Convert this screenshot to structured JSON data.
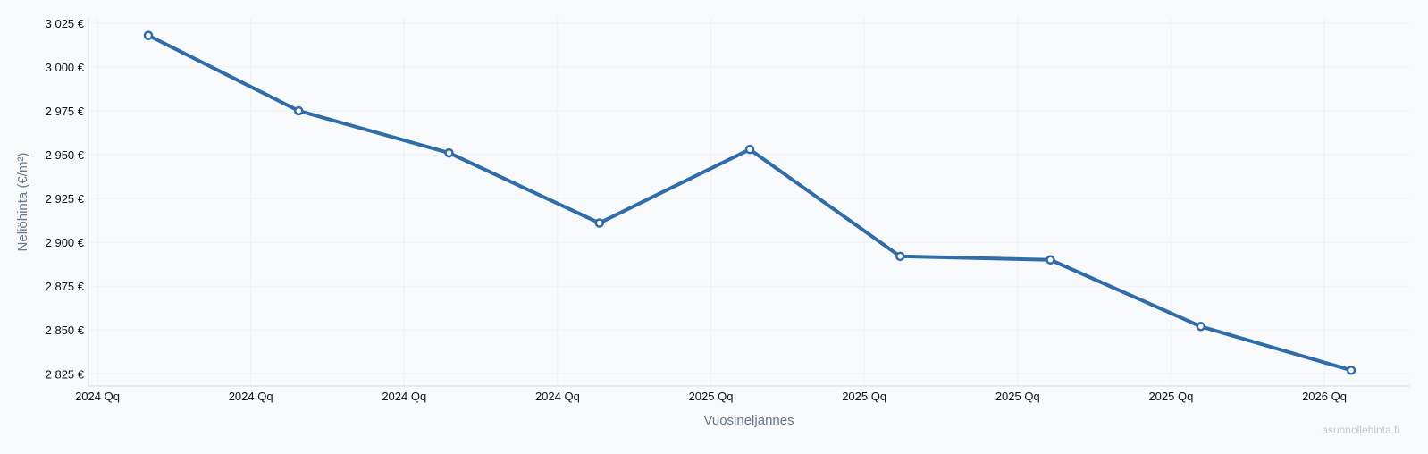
{
  "chart_data": {
    "type": "line",
    "title": "",
    "xlabel": "Vuosineljännes",
    "ylabel": "Neliöhinta (€/m²)",
    "x_tick_labels": [
      "2024 Qq",
      "2024 Qq",
      "2024 Qq",
      "2024 Qq",
      "2025 Qq",
      "2025 Qq",
      "2025 Qq",
      "2025 Qq",
      "2026 Qq"
    ],
    "y_tick_labels": [
      "3 025 €",
      "3 000 €",
      "2 975 €",
      "2 950 €",
      "2 925 €",
      "2 900 €",
      "2 875 €",
      "2 850 €",
      "2 825 €"
    ],
    "y_ticks": [
      3025,
      3000,
      2975,
      2950,
      2925,
      2900,
      2875,
      2850,
      2825
    ],
    "ylim": [
      2818,
      3028
    ],
    "grid": true,
    "legend": "none",
    "series": [
      {
        "values": [
          3018,
          2975,
          2951,
          2911,
          2953,
          2892,
          2890,
          2852,
          2827
        ]
      }
    ],
    "colors": {
      "line": "#2f6ca8",
      "marker_fill": "#ffffff",
      "grid": "#eef0f3",
      "axis": "#dde1e6"
    }
  },
  "watermark": "asunnollehinta.fi"
}
